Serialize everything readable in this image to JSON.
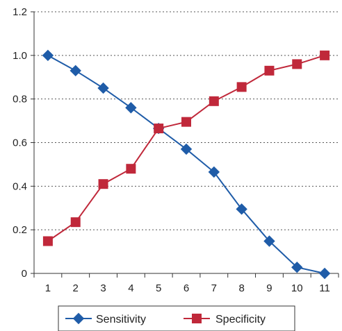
{
  "chart_data": {
    "type": "line",
    "title": "",
    "xlabel": "",
    "ylabel": "",
    "x": [
      1,
      2,
      3,
      4,
      5,
      6,
      7,
      8,
      9,
      10,
      11
    ],
    "ylim": [
      0,
      1.2
    ],
    "y_ticks": [
      "0",
      "0.2",
      "0.4",
      "0.6",
      "0.8",
      "1.0",
      "1.2"
    ],
    "grid": "horizontal dotted",
    "legend_position": "bottom",
    "series": [
      {
        "name": "Sensitivity",
        "color": "#1f5ca8",
        "marker": "diamond",
        "values": [
          1.0,
          0.93,
          0.85,
          0.76,
          0.665,
          0.57,
          0.465,
          0.295,
          0.148,
          0.028,
          0.0
        ]
      },
      {
        "name": "Specificity",
        "color": "#c0283a",
        "marker": "square",
        "values": [
          0.148,
          0.235,
          0.41,
          0.48,
          0.665,
          0.695,
          0.79,
          0.855,
          0.93,
          0.96,
          1.0
        ]
      }
    ]
  }
}
